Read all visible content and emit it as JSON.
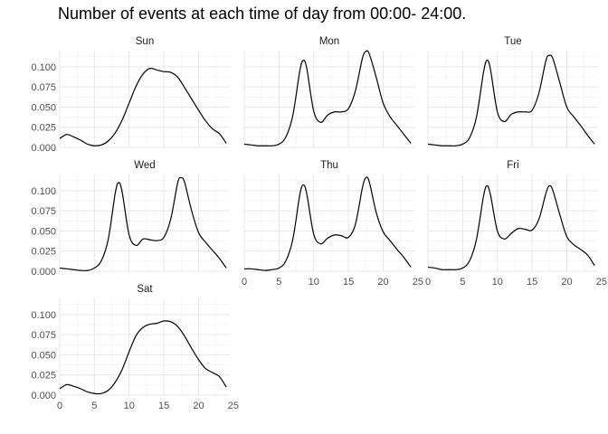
{
  "title": "Number of events at each time of day from 00:00- 24:00.",
  "chart_data": {
    "type": "line",
    "title": "Number of events at each time of day from 00:00- 24:00.",
    "xlabel": "",
    "ylabel": "",
    "xlim": [
      0,
      24.5
    ],
    "ylim": [
      0,
      0.12
    ],
    "x_ticks": [
      0,
      5,
      10,
      15,
      20,
      25
    ],
    "y_ticks": [
      0.0,
      0.025,
      0.05,
      0.075,
      0.1
    ],
    "x_tick_labels": [
      "0",
      "5",
      "10",
      "15",
      "20",
      "25"
    ],
    "y_tick_labels": [
      "0.000",
      "0.025",
      "0.050",
      "0.075",
      "0.100"
    ],
    "grid": true,
    "facets": [
      {
        "label": "Sun",
        "x": [
          0,
          1,
          2,
          3,
          4,
          5,
          6,
          7,
          8,
          9,
          10,
          11,
          12,
          13,
          14,
          15,
          16,
          17,
          18,
          19,
          20,
          21,
          22,
          23,
          24
        ],
        "y": [
          0.011,
          0.016,
          0.013,
          0.009,
          0.004,
          0.002,
          0.003,
          0.008,
          0.018,
          0.034,
          0.055,
          0.076,
          0.091,
          0.098,
          0.096,
          0.094,
          0.093,
          0.087,
          0.074,
          0.06,
          0.046,
          0.033,
          0.023,
          0.017,
          0.005
        ]
      },
      {
        "label": "Mon",
        "x": [
          0,
          1,
          2,
          3,
          4,
          5,
          6,
          7,
          8,
          8.5,
          9,
          10,
          11,
          12,
          13,
          14,
          15,
          16,
          17,
          17.5,
          18,
          19,
          20,
          21,
          22,
          23,
          24
        ],
        "y": [
          0.004,
          0.003,
          0.002,
          0.002,
          0.002,
          0.004,
          0.013,
          0.04,
          0.095,
          0.108,
          0.098,
          0.045,
          0.031,
          0.04,
          0.044,
          0.044,
          0.048,
          0.07,
          0.11,
          0.119,
          0.116,
          0.087,
          0.055,
          0.038,
          0.027,
          0.016,
          0.005
        ]
      },
      {
        "label": "Tue",
        "x": [
          0,
          1,
          2,
          3,
          4,
          5,
          6,
          7,
          8,
          8.5,
          9,
          10,
          11,
          12,
          13,
          14,
          15,
          16,
          17,
          17.5,
          18,
          19,
          20,
          21,
          22,
          23,
          24
        ],
        "y": [
          0.004,
          0.003,
          0.002,
          0.002,
          0.002,
          0.004,
          0.012,
          0.038,
          0.093,
          0.108,
          0.097,
          0.044,
          0.032,
          0.041,
          0.044,
          0.044,
          0.046,
          0.068,
          0.108,
          0.114,
          0.11,
          0.08,
          0.05,
          0.038,
          0.027,
          0.015,
          0.004
        ]
      },
      {
        "label": "Wed",
        "x": [
          0,
          1,
          2,
          3,
          4,
          5,
          6,
          7,
          8,
          8.5,
          9,
          10,
          11,
          12,
          13,
          14,
          15,
          16,
          17,
          17.5,
          18,
          19,
          20,
          21,
          22,
          23,
          24
        ],
        "y": [
          0.004,
          0.003,
          0.002,
          0.001,
          0.001,
          0.004,
          0.013,
          0.04,
          0.097,
          0.11,
          0.098,
          0.045,
          0.032,
          0.04,
          0.039,
          0.038,
          0.042,
          0.065,
          0.11,
          0.116,
          0.11,
          0.075,
          0.048,
          0.036,
          0.026,
          0.016,
          0.004
        ]
      },
      {
        "label": "Thu",
        "x": [
          0,
          1,
          2,
          3,
          4,
          5,
          6,
          7,
          8,
          8.5,
          9,
          10,
          11,
          12,
          13,
          14,
          15,
          16,
          17,
          17.5,
          18,
          19,
          20,
          21,
          22,
          23,
          24
        ],
        "y": [
          0.003,
          0.003,
          0.002,
          0.001,
          0.002,
          0.004,
          0.013,
          0.04,
          0.095,
          0.107,
          0.096,
          0.046,
          0.034,
          0.041,
          0.045,
          0.044,
          0.042,
          0.058,
          0.103,
          0.116,
          0.111,
          0.073,
          0.049,
          0.038,
          0.027,
          0.017,
          0.005
        ]
      },
      {
        "label": "Fri",
        "x": [
          0,
          1,
          2,
          3,
          4,
          5,
          6,
          7,
          8,
          8.5,
          9,
          10,
          11,
          12,
          13,
          14,
          15,
          16,
          17,
          17.5,
          18,
          19,
          20,
          21,
          22,
          23,
          24
        ],
        "y": [
          0.005,
          0.004,
          0.002,
          0.002,
          0.002,
          0.004,
          0.013,
          0.04,
          0.093,
          0.106,
          0.095,
          0.05,
          0.04,
          0.047,
          0.053,
          0.052,
          0.051,
          0.065,
          0.097,
          0.106,
          0.1,
          0.07,
          0.043,
          0.033,
          0.027,
          0.02,
          0.007
        ]
      },
      {
        "label": "Sat",
        "x": [
          0,
          1,
          2,
          3,
          4,
          5,
          6,
          7,
          8,
          9,
          10,
          11,
          12,
          13,
          14,
          15,
          16,
          17,
          18,
          19,
          20,
          21,
          22,
          23,
          24
        ],
        "y": [
          0.008,
          0.013,
          0.011,
          0.008,
          0.004,
          0.002,
          0.002,
          0.006,
          0.016,
          0.032,
          0.054,
          0.074,
          0.084,
          0.088,
          0.089,
          0.092,
          0.091,
          0.085,
          0.073,
          0.058,
          0.044,
          0.033,
          0.028,
          0.023,
          0.01
        ]
      }
    ]
  }
}
